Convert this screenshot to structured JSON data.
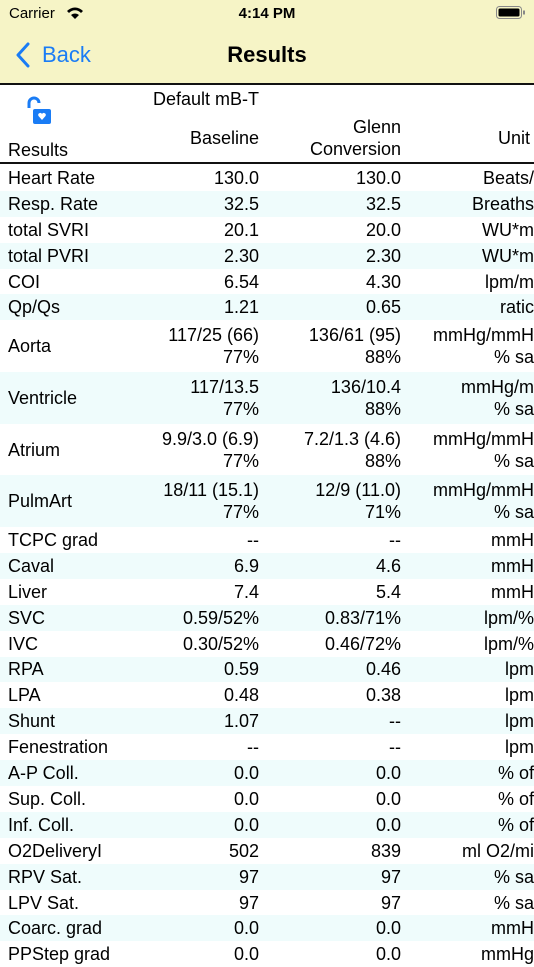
{
  "status": {
    "carrier": "Carrier",
    "time": "4:14 PM"
  },
  "nav": {
    "back": "Back",
    "title": "Results"
  },
  "header": {
    "profile": "Default mB-T",
    "results": "Results",
    "baseline": "Baseline",
    "glenn": [
      "Glenn",
      "Conversion"
    ],
    "units": "Unit"
  },
  "rows": [
    {
      "name": "Heart Rate",
      "baseline": [
        "130.0"
      ],
      "glenn": [
        "130.0"
      ],
      "units": [
        "Beats/"
      ]
    },
    {
      "name": "Resp. Rate",
      "baseline": [
        "32.5"
      ],
      "glenn": [
        "32.5"
      ],
      "units": [
        "Breaths"
      ]
    },
    {
      "name": "total SVRI",
      "baseline": [
        "20.1"
      ],
      "glenn": [
        "20.0"
      ],
      "units": [
        "WU*m"
      ]
    },
    {
      "name": "total PVRI",
      "baseline": [
        "2.30"
      ],
      "glenn": [
        "2.30"
      ],
      "units": [
        "WU*m"
      ]
    },
    {
      "name": "COI",
      "baseline": [
        "6.54"
      ],
      "glenn": [
        "4.30"
      ],
      "units": [
        "lpm/m"
      ]
    },
    {
      "name": "Qp/Qs",
      "baseline": [
        "1.21"
      ],
      "glenn": [
        "0.65"
      ],
      "units": [
        "ratic"
      ]
    },
    {
      "name": "Aorta",
      "baseline": [
        "117/25 (66)",
        "77%"
      ],
      "glenn": [
        "136/61 (95)",
        "88%"
      ],
      "units": [
        "mmHg/mmH",
        "% sa"
      ]
    },
    {
      "name": "Ventricle",
      "baseline": [
        "117/13.5",
        "77%"
      ],
      "glenn": [
        "136/10.4",
        "88%"
      ],
      "units": [
        "mmHg/m",
        "% sa"
      ]
    },
    {
      "name": "Atrium",
      "baseline": [
        "9.9/3.0 (6.9)",
        "77%"
      ],
      "glenn": [
        "7.2/1.3 (4.6)",
        "88%"
      ],
      "units": [
        "mmHg/mmH",
        "% sa"
      ]
    },
    {
      "name": "PulmArt",
      "baseline": [
        "18/11 (15.1)",
        "77%"
      ],
      "glenn": [
        "12/9 (11.0)",
        "71%"
      ],
      "units": [
        "mmHg/mmH",
        "% sa"
      ]
    },
    {
      "name": "TCPC grad",
      "baseline": [
        "--"
      ],
      "glenn": [
        "--"
      ],
      "units": [
        "mmH"
      ]
    },
    {
      "name": "Caval",
      "baseline": [
        "6.9"
      ],
      "glenn": [
        "4.6"
      ],
      "units": [
        "mmH"
      ]
    },
    {
      "name": "Liver",
      "baseline": [
        "7.4"
      ],
      "glenn": [
        "5.4"
      ],
      "units": [
        "mmH"
      ]
    },
    {
      "name": "SVC",
      "baseline": [
        "0.59/52%"
      ],
      "glenn": [
        "0.83/71%"
      ],
      "units": [
        "lpm/%"
      ]
    },
    {
      "name": "IVC",
      "baseline": [
        "0.30/52%"
      ],
      "glenn": [
        "0.46/72%"
      ],
      "units": [
        "lpm/%"
      ]
    },
    {
      "name": "RPA",
      "baseline": [
        "0.59"
      ],
      "glenn": [
        "0.46"
      ],
      "units": [
        "lpm"
      ]
    },
    {
      "name": "LPA",
      "baseline": [
        "0.48"
      ],
      "glenn": [
        "0.38"
      ],
      "units": [
        "lpm"
      ]
    },
    {
      "name": "Shunt",
      "baseline": [
        "1.07"
      ],
      "glenn": [
        "--"
      ],
      "units": [
        "lpm"
      ]
    },
    {
      "name": "Fenestration",
      "baseline": [
        "--"
      ],
      "glenn": [
        "--"
      ],
      "units": [
        "lpm"
      ]
    },
    {
      "name": "A-P Coll.",
      "baseline": [
        "0.0"
      ],
      "glenn": [
        "0.0"
      ],
      "units": [
        "% of"
      ]
    },
    {
      "name": "Sup. Coll.",
      "baseline": [
        "0.0"
      ],
      "glenn": [
        "0.0"
      ],
      "units": [
        "% of"
      ]
    },
    {
      "name": "Inf. Coll.",
      "baseline": [
        "0.0"
      ],
      "glenn": [
        "0.0"
      ],
      "units": [
        "% of"
      ]
    },
    {
      "name": "O2DeliveryI",
      "baseline": [
        "502"
      ],
      "glenn": [
        "839"
      ],
      "units": [
        "ml O2/mi"
      ]
    },
    {
      "name": "RPV Sat.",
      "baseline": [
        "97"
      ],
      "glenn": [
        "97"
      ],
      "units": [
        "% sa"
      ]
    },
    {
      "name": "LPV Sat.",
      "baseline": [
        "97"
      ],
      "glenn": [
        "97"
      ],
      "units": [
        "% sa"
      ]
    },
    {
      "name": "Coarc. grad",
      "baseline": [
        "0.0"
      ],
      "glenn": [
        "0.0"
      ],
      "units": [
        "mmH"
      ]
    },
    {
      "name": "PPStep grad",
      "baseline": [
        "0.0"
      ],
      "glenn": [
        "0.0"
      ],
      "units": [
        "mmHg"
      ]
    }
  ]
}
